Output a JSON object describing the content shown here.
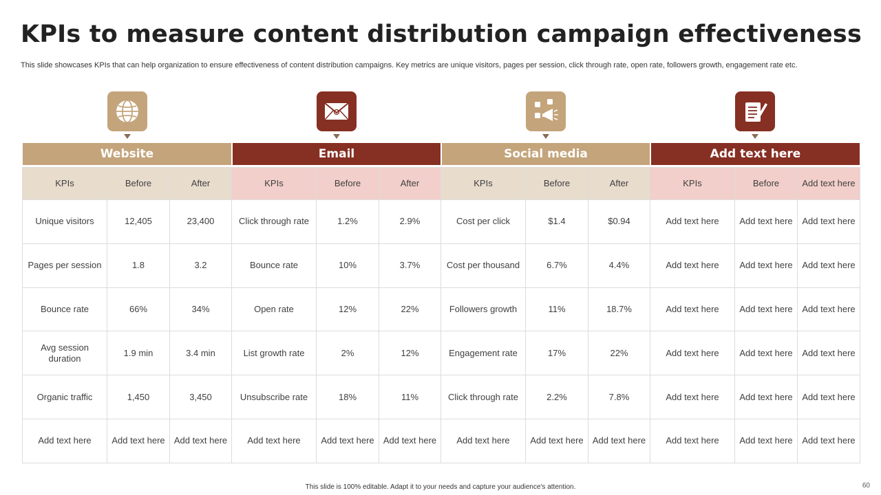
{
  "title": "KPIs to measure content distribution campaign effectiveness",
  "subtitle": "This slide showcases KPIs that can help organization to ensure effectiveness of content distribution campaigns. Key metrics are unique visitors, pages per session, click through rate, open rate, followers growth, engagement rate etc.",
  "icons": [
    "globe-icon",
    "email-icon",
    "social-media-icon",
    "notes-icon"
  ],
  "colors": {
    "tan": "#c4a47b",
    "red": "#862f23",
    "header_tan": "#e8dccd",
    "header_pink": "#f2cfca"
  },
  "sections": [
    {
      "label": "Website"
    },
    {
      "label": "Email"
    },
    {
      "label": "Social media"
    },
    {
      "label": "Add text here"
    }
  ],
  "table": {
    "headers": [
      "KPIs",
      "Before",
      "After",
      "KPIs",
      "Before",
      "After",
      "KPIs",
      "Before",
      "After",
      "KPIs",
      "Before",
      "Add text here"
    ],
    "rows": [
      [
        "Unique visitors",
        "12,405",
        "23,400",
        "Click through rate",
        "1.2%",
        "2.9%",
        "Cost per click",
        "$1.4",
        "$0.94",
        "Add text here",
        "Add text here",
        "Add text here"
      ],
      [
        "Pages per session",
        "1.8",
        "3.2",
        "Bounce rate",
        "10%",
        "3.7%",
        "Cost per thousand",
        "6.7%",
        "4.4%",
        "Add text here",
        "Add text here",
        "Add text here"
      ],
      [
        "Bounce rate",
        "66%",
        "34%",
        "Open rate",
        "12%",
        "22%",
        "Followers growth",
        "11%",
        "18.7%",
        "Add text here",
        "Add text here",
        "Add text here"
      ],
      [
        "Avg session duration",
        "1.9 min",
        "3.4 min",
        "List growth rate",
        "2%",
        "12%",
        "Engagement rate",
        "17%",
        "22%",
        "Add text here",
        "Add text here",
        "Add text here"
      ],
      [
        "Organic traffic",
        "1,450",
        "3,450",
        "Unsubscribe rate",
        "18%",
        "11%",
        "Click through rate",
        "2.2%",
        "7.8%",
        "Add text here",
        "Add text here",
        "Add text here"
      ],
      [
        "Add text here",
        "Add text here",
        "Add text here",
        "Add text here",
        "Add text here",
        "Add text here",
        "Add text here",
        "Add text here",
        "Add text here",
        "Add text here",
        "Add text here",
        "Add text here"
      ]
    ]
  },
  "footer": "This slide is 100% editable. Adapt it to your needs and capture your audience's attention.",
  "page_number": "60"
}
